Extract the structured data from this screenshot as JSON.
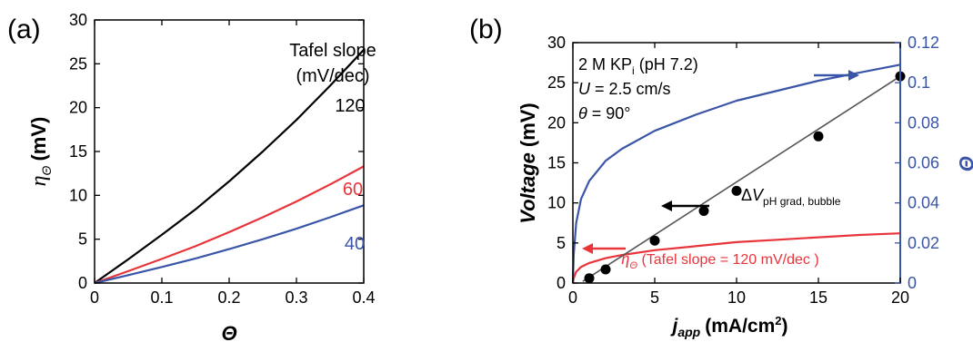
{
  "chart_data": [
    {
      "panel_label": "(a)",
      "type": "line",
      "xlabel": "Θ",
      "ylabel_symbol": "η",
      "ylabel_subscript": "Θ",
      "ylabel_unit": "(mV)",
      "xlim": [
        0,
        0.4
      ],
      "ylim": [
        0,
        30
      ],
      "xticks": [
        "0",
        "0.1",
        "0.2",
        "0.3",
        "0.4"
      ],
      "xtick_values": [
        0,
        0.1,
        0.2,
        0.3,
        0.4
      ],
      "yticks": [
        "0",
        "5",
        "10",
        "15",
        "20",
        "25",
        "30"
      ],
      "ytick_values": [
        0,
        5,
        10,
        15,
        20,
        25,
        30
      ],
      "legend_title": [
        "Tafel slope",
        "(mV/dec)"
      ],
      "x": [
        0,
        0.05,
        0.1,
        0.15,
        0.2,
        0.25,
        0.3,
        0.35,
        0.4
      ],
      "series": [
        {
          "name": "120",
          "color": "#000000",
          "values": [
            0,
            2.7,
            5.5,
            8.4,
            11.6,
            15.0,
            18.6,
            22.5,
            26.6
          ]
        },
        {
          "name": "60",
          "color": "#e8343a",
          "values": [
            0,
            1.35,
            2.75,
            4.2,
            5.8,
            7.5,
            9.3,
            11.25,
            13.3
          ]
        },
        {
          "name": "40",
          "color": "#3a55a8",
          "values": [
            0,
            0.9,
            1.83,
            2.8,
            3.87,
            5.0,
            6.2,
            7.5,
            8.87
          ]
        }
      ],
      "grid": false
    },
    {
      "panel_label": "(b)",
      "type": "line",
      "xlabel_symbol": "j",
      "xlabel_subscript": "app",
      "xlabel_unit": "(mA/cm",
      "xlabel_sup": "2",
      "xlabel_close": ")",
      "ylabel": "Voltage",
      "ylabel_unit": "(mV)",
      "y2label": "Θ",
      "xlim": [
        0,
        20
      ],
      "ylim": [
        0,
        30
      ],
      "y2lim": [
        0,
        0.12
      ],
      "xticks": [
        "0",
        "5",
        "10",
        "15",
        "20"
      ],
      "xtick_values": [
        0,
        5,
        10,
        15,
        20
      ],
      "yticks": [
        "0",
        "5",
        "10",
        "15",
        "20",
        "25",
        "30"
      ],
      "ytick_values": [
        0,
        5,
        10,
        15,
        20,
        25,
        30
      ],
      "y2ticks": [
        "0",
        "0.02",
        "0.04",
        "0.06",
        "0.08",
        "0.1",
        "0.12"
      ],
      "y2tick_values": [
        0,
        0.02,
        0.04,
        0.06,
        0.08,
        0.1,
        0.12
      ],
      "conditions": {
        "line1_main": "2 M KP",
        "line1_sub": "i",
        "line1_end": " (pH 7.2)",
        "line2_var": "U",
        "line2_rest": " = 2.5 cm/s",
        "line3_var": "θ",
        "line3_rest": " = 90°"
      },
      "series": [
        {
          "name": "ΔV pH grad, bubble",
          "label_prefix": "Δ",
          "label_var": "V",
          "label_sub": "pH grad, bubble",
          "color": "#000000",
          "axis": "left",
          "style": "markers+line",
          "x": [
            1,
            2,
            5,
            8,
            10,
            15,
            20
          ],
          "values": [
            0.6,
            1.7,
            5.3,
            9.0,
            11.5,
            18.3,
            25.8
          ]
        },
        {
          "name": "Θ",
          "color": "#3a55a8",
          "axis": "right",
          "style": "line",
          "x": [
            0,
            0.05,
            0.2,
            0.5,
            1,
            2,
            3,
            5,
            7.5,
            10,
            12.5,
            15,
            17.5,
            20
          ],
          "values": [
            0,
            0.014,
            0.03,
            0.042,
            0.051,
            0.061,
            0.067,
            0.076,
            0.084,
            0.091,
            0.096,
            0.101,
            0.105,
            0.109
          ]
        },
        {
          "name": "ηΘ (Tafel slope = 120 mV/dec )",
          "label_var": "η",
          "label_sub": "Θ",
          "label_rest": " (Tafel slope = 120 mV/dec )",
          "color": "#e8343a",
          "axis": "left",
          "style": "line",
          "x": [
            0,
            0.05,
            0.2,
            0.5,
            1,
            2,
            3,
            5,
            7.5,
            10,
            12.5,
            15,
            17.5,
            20
          ],
          "values": [
            0,
            0.6,
            1.4,
            2.0,
            2.5,
            3.1,
            3.5,
            4.1,
            4.6,
            5.1,
            5.4,
            5.7,
            6.0,
            6.2
          ]
        }
      ],
      "grid": false
    }
  ]
}
